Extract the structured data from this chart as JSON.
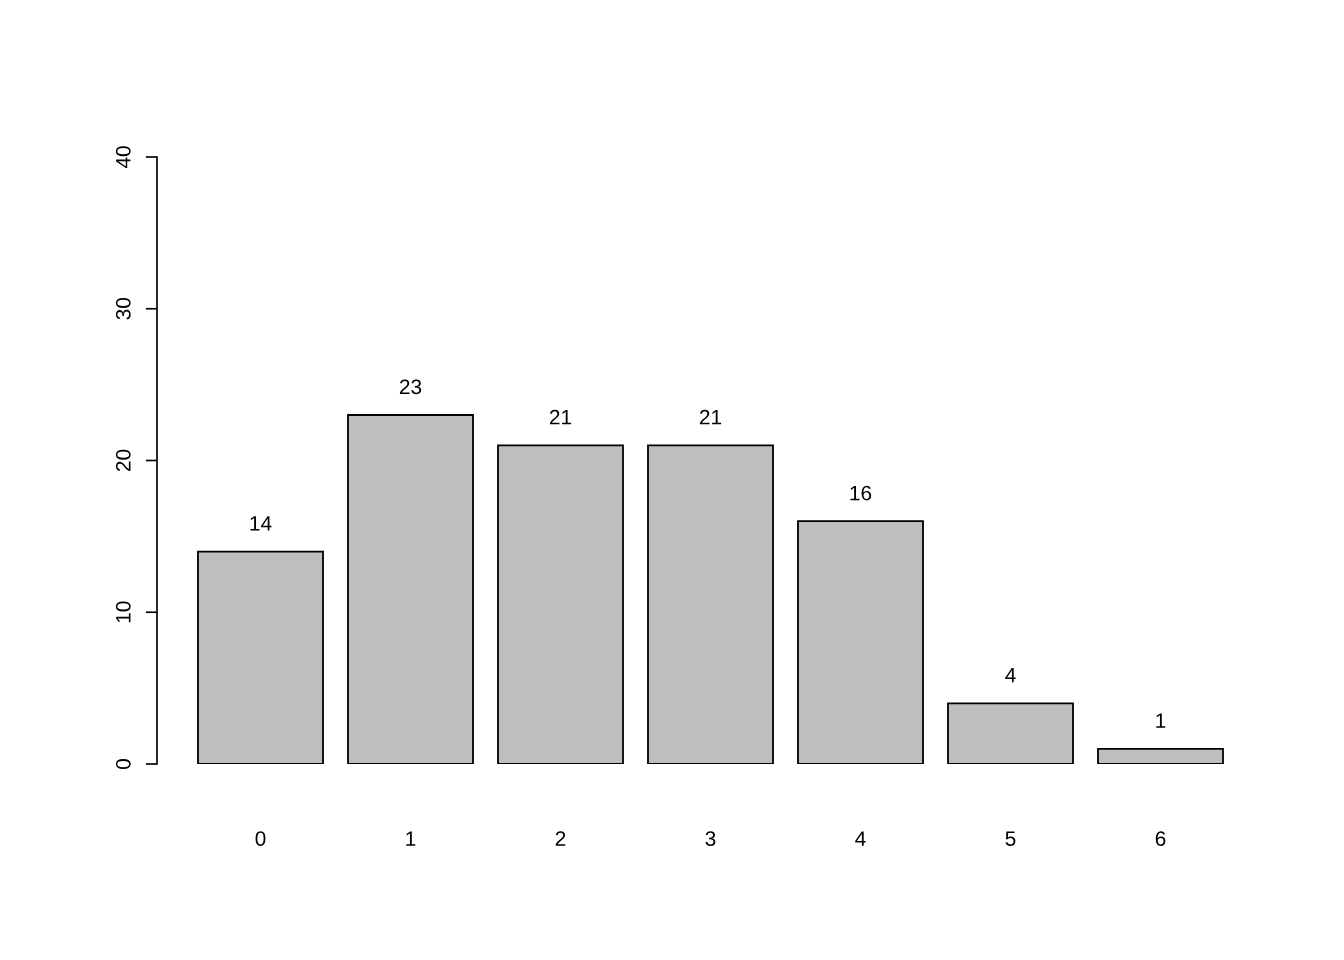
{
  "chart_data": {
    "type": "bar",
    "categories": [
      "0",
      "1",
      "2",
      "3",
      "4",
      "5",
      "6"
    ],
    "values": [
      14,
      23,
      21,
      21,
      16,
      4,
      1
    ],
    "color": "#bebebe",
    "ylim": [
      0,
      40
    ],
    "yticks": [
      0,
      10,
      20,
      30,
      40
    ],
    "data_labels": true,
    "grid": false
  }
}
